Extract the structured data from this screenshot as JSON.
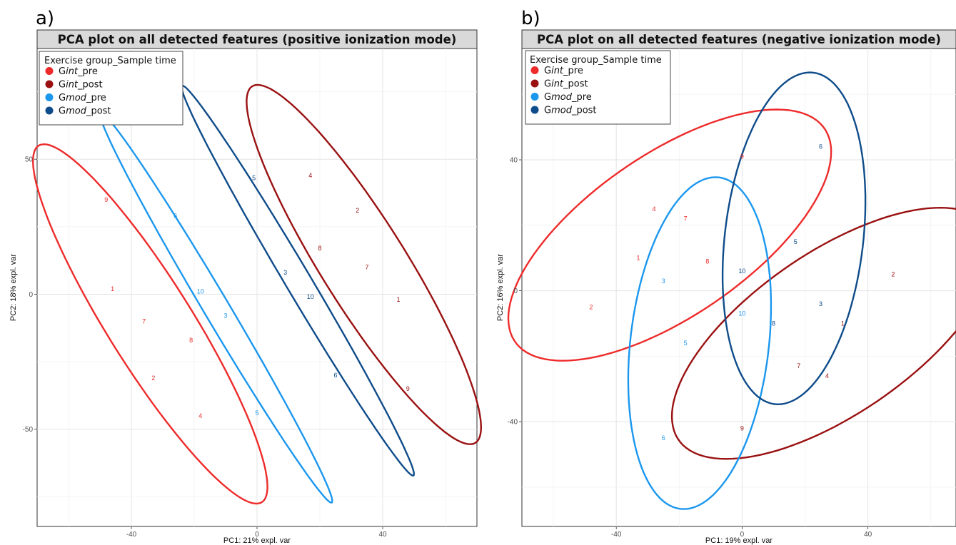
{
  "chart_data": [
    {
      "type": "scatter",
      "panel_label": "a)",
      "title": "PCA plot on all detected features (positive ionization mode)",
      "xlabel": "PC1: 21% expl. var",
      "ylabel": "PC2: 18% expl. var",
      "xlim": [
        -70,
        70
      ],
      "ylim": [
        -86,
        91
      ],
      "xticks": [
        -40,
        0,
        40
      ],
      "yticks": [
        50,
        0,
        -50
      ],
      "grid": true,
      "legend": {
        "title": "Exercise group_Sample time",
        "position": "top-left",
        "entries": [
          {
            "prefix": "G",
            "italic": "int",
            "suffix": "_pre",
            "color": "#ee2b2b"
          },
          {
            "prefix": "G",
            "italic": "int",
            "suffix": "_post",
            "color": "#9a1111"
          },
          {
            "prefix": "G",
            "italic": "mod",
            "suffix": "_pre",
            "color": "#1b97ee"
          },
          {
            "prefix": "G",
            "italic": "mod",
            "suffix": "_post",
            "color": "#0f4c8a"
          }
        ]
      },
      "series": [
        {
          "name": "Gint_pre",
          "color": "#ee2b2b",
          "points": [
            {
              "x": -48,
              "y": 35,
              "label": "9"
            },
            {
              "x": -46,
              "y": 2,
              "label": "1"
            },
            {
              "x": -36,
              "y": -10,
              "label": "7"
            },
            {
              "x": -21,
              "y": -17,
              "label": "8"
            },
            {
              "x": -33,
              "y": -31,
              "label": "2"
            },
            {
              "x": -18,
              "y": -45,
              "label": "4"
            }
          ],
          "ellipse": {
            "cx": -34,
            "cy": -11,
            "a": 75,
            "b": 14,
            "angle": -62
          }
        },
        {
          "name": "Gint_post",
          "color": "#9a1111",
          "points": [
            {
              "x": 17,
              "y": 44,
              "label": "4"
            },
            {
              "x": 32,
              "y": 31,
              "label": "2"
            },
            {
              "x": 20,
              "y": 17,
              "label": "8"
            },
            {
              "x": 35,
              "y": 10,
              "label": "7"
            },
            {
              "x": 45,
              "y": -2,
              "label": "1"
            },
            {
              "x": 48,
              "y": -35,
              "label": "9"
            }
          ],
          "ellipse": {
            "cx": 34,
            "cy": 11,
            "a": 75,
            "b": 14,
            "angle": -62
          }
        },
        {
          "name": "Gmod_pre",
          "color": "#1b97ee",
          "points": [
            {
              "x": -26,
              "y": 29,
              "label": "6"
            },
            {
              "x": -18,
              "y": 1,
              "label": "10"
            },
            {
              "x": -10,
              "y": -8,
              "label": "3"
            },
            {
              "x": 0,
              "y": -44,
              "label": "5"
            }
          ],
          "ellipse": {
            "cx": -13,
            "cy": -5,
            "a": 81,
            "b": 4.2,
            "angle": -63
          }
        },
        {
          "name": "Gmod_post",
          "color": "#0f4c8a",
          "points": [
            {
              "x": -1,
              "y": 43,
              "label": "5"
            },
            {
              "x": 9,
              "y": 8,
              "label": "3"
            },
            {
              "x": 17,
              "y": -1,
              "label": "10"
            },
            {
              "x": 25,
              "y": -30,
              "label": "6"
            }
          ],
          "ellipse": {
            "cx": 13,
            "cy": 5,
            "a": 81,
            "b": 4.2,
            "angle": -63
          }
        }
      ]
    },
    {
      "type": "scatter",
      "panel_label": "b)",
      "title": "PCA plot on all detected features (negative ionization mode)",
      "xlabel": "PC1: 19% expl. var",
      "ylabel": "PC2: 16% expl. var",
      "xlim": [
        -70,
        68
      ],
      "ylim": [
        -72,
        74
      ],
      "xticks": [
        -40,
        0,
        40
      ],
      "yticks": [
        40,
        0,
        -40
      ],
      "grid": true,
      "legend": {
        "title": "Exercise group_Sample time",
        "position": "top-left",
        "entries": [
          {
            "prefix": "G",
            "italic": "int",
            "suffix": "_pre",
            "color": "#ee2b2b"
          },
          {
            "prefix": "G",
            "italic": "int",
            "suffix": "_post",
            "color": "#9a1111"
          },
          {
            "prefix": "G",
            "italic": "mod",
            "suffix": "_pre",
            "color": "#1b97ee"
          },
          {
            "prefix": "G",
            "italic": "mod",
            "suffix": "_post",
            "color": "#0f4c8a"
          }
        ]
      },
      "series": [
        {
          "name": "Gint_pre",
          "color": "#ee2b2b",
          "points": [
            {
              "x": 0,
              "y": 41,
              "label": "9"
            },
            {
              "x": -28,
              "y": 25,
              "label": "4"
            },
            {
              "x": -18,
              "y": 22,
              "label": "7"
            },
            {
              "x": -33,
              "y": 10,
              "label": "1"
            },
            {
              "x": -11,
              "y": 9,
              "label": "8"
            },
            {
              "x": -48,
              "y": -5,
              "label": "2"
            }
          ],
          "ellipse": {
            "cx": -23,
            "cy": 17,
            "a": 59,
            "b": 25,
            "angle": 33
          }
        },
        {
          "name": "Gint_post",
          "color": "#9a1111",
          "points": [
            {
              "x": 48,
              "y": 5,
              "label": "2"
            },
            {
              "x": 32,
              "y": -10,
              "label": "1"
            },
            {
              "x": 18,
              "y": -23,
              "label": "7"
            },
            {
              "x": 27,
              "y": -26,
              "label": "4"
            },
            {
              "x": 0,
              "y": -42,
              "label": "9"
            }
          ],
          "ellipse": {
            "cx": 29,
            "cy": -13,
            "a": 59,
            "b": 25,
            "angle": 33
          }
        },
        {
          "name": "Gmod_pre",
          "color": "#1b97ee",
          "points": [
            {
              "x": -25,
              "y": 3,
              "label": "3"
            },
            {
              "x": 0,
              "y": -7,
              "label": "10"
            },
            {
              "x": -18,
              "y": -16,
              "label": "5"
            },
            {
              "x": -25,
              "y": -45,
              "label": "6"
            }
          ],
          "ellipse": {
            "cx": -13.5,
            "cy": -16,
            "a": 51,
            "b": 22,
            "angle": 83
          }
        },
        {
          "name": "Gmod_post",
          "color": "#0f4c8a",
          "points": [
            {
              "x": 25,
              "y": 44,
              "label": "6"
            },
            {
              "x": 17,
              "y": 15,
              "label": "5"
            },
            {
              "x": 0,
              "y": 6,
              "label": "10"
            },
            {
              "x": 25,
              "y": -4,
              "label": "3"
            },
            {
              "x": 10,
              "y": -10,
              "label": "8"
            }
          ],
          "ellipse": {
            "cx": 16.5,
            "cy": 16,
            "a": 51,
            "b": 22,
            "angle": 83
          }
        }
      ]
    }
  ]
}
